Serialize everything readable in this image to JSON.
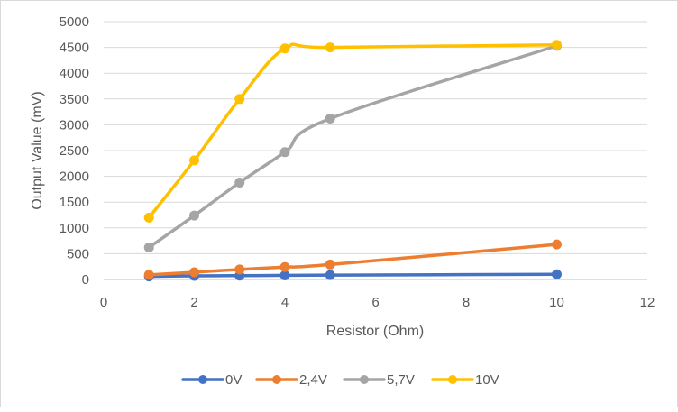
{
  "chart_data": {
    "type": "line",
    "title": "",
    "xlabel": "Resistor (Ohm)",
    "ylabel": "Output Value (mV)",
    "xlim": [
      0,
      12
    ],
    "ylim": [
      0,
      5000
    ],
    "xticks": [
      0,
      2,
      4,
      6,
      8,
      10,
      12
    ],
    "yticks": [
      0,
      500,
      1000,
      1500,
      2000,
      2500,
      3000,
      3500,
      4000,
      4500,
      5000
    ],
    "xtick_labels": [
      "0",
      "2",
      "4",
      "6",
      "8",
      "10",
      "12"
    ],
    "ytick_labels": [
      "0",
      "500",
      "1000",
      "1500",
      "2000",
      "2500",
      "3000",
      "3500",
      "4000",
      "4500",
      "5000"
    ],
    "grid": "horizontal",
    "legend_position": "bottom",
    "x": [
      1,
      2,
      3,
      4,
      5,
      10
    ],
    "series": [
      {
        "name": "0V",
        "color": "#4472C4",
        "values": [
          60,
          70,
          75,
          80,
          85,
          100
        ]
      },
      {
        "name": "2,4V",
        "color": "#ED7D31",
        "values": [
          90,
          140,
          195,
          240,
          290,
          680
        ]
      },
      {
        "name": "5,7V",
        "color": "#A5A5A5",
        "values": [
          620,
          1240,
          1880,
          2470,
          3120,
          4530
        ]
      },
      {
        "name": "10V",
        "color": "#FFC000",
        "values": [
          1200,
          2310,
          3500,
          4480,
          4500,
          4550
        ]
      }
    ]
  }
}
